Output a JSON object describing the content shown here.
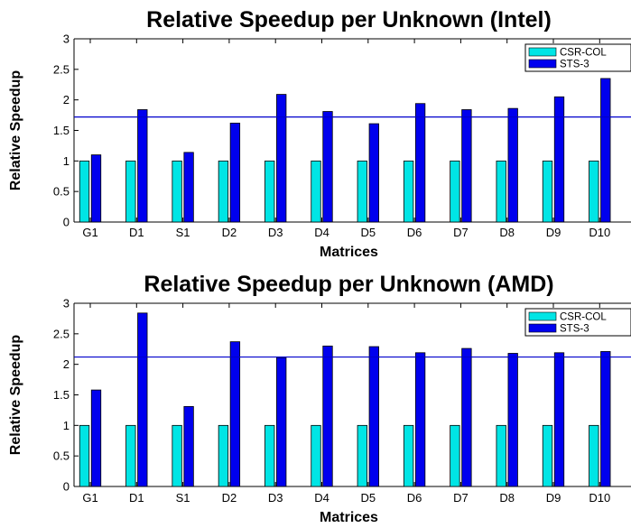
{
  "chart_data": [
    {
      "type": "bar",
      "title": "Relative Speedup per Unknown (Intel)",
      "xlabel": "Matrices",
      "ylabel": "Relative Speedup",
      "categories": [
        "G1",
        "D1",
        "S1",
        "D2",
        "D3",
        "D4",
        "D5",
        "D6",
        "D7",
        "D8",
        "D9",
        "D10"
      ],
      "series": [
        {
          "name": "CSR-COL",
          "color": "#00e5e5",
          "values": [
            1,
            1,
            1,
            1,
            1,
            1,
            1,
            1,
            1,
            1,
            1,
            1
          ]
        },
        {
          "name": "STS-3",
          "color": "#0000ee",
          "values": [
            1.1,
            1.84,
            1.14,
            1.62,
            2.09,
            1.81,
            1.61,
            1.94,
            1.84,
            1.86,
            2.05,
            2.35
          ]
        }
      ],
      "reference_line": 1.72,
      "reference_color": "#0000cc",
      "ylim": [
        0,
        3
      ],
      "yticks": [
        "0",
        "0.5",
        "1",
        "1.5",
        "2",
        "2.5",
        "3"
      ],
      "legend_position": "top-right",
      "grid": false
    },
    {
      "type": "bar",
      "title": "Relative Speedup per Unknown (AMD)",
      "xlabel": "Matrices",
      "ylabel": "Relative Speedup",
      "categories": [
        "G1",
        "D1",
        "S1",
        "D2",
        "D3",
        "D4",
        "D5",
        "D6",
        "D7",
        "D8",
        "D9",
        "D10"
      ],
      "series": [
        {
          "name": "CSR-COL",
          "color": "#00e5e5",
          "values": [
            1,
            1,
            1,
            1,
            1,
            1,
            1,
            1,
            1,
            1,
            1,
            1
          ]
        },
        {
          "name": "STS-3",
          "color": "#0000ee",
          "values": [
            1.58,
            2.84,
            1.31,
            2.37,
            2.11,
            2.3,
            2.29,
            2.19,
            2.26,
            2.18,
            2.19,
            2.21
          ]
        }
      ],
      "reference_line": 2.12,
      "reference_color": "#0000cc",
      "ylim": [
        0,
        3
      ],
      "yticks": [
        "0",
        "0.5",
        "1",
        "1.5",
        "2",
        "2.5",
        "3"
      ],
      "legend_position": "top-right",
      "grid": false
    }
  ]
}
